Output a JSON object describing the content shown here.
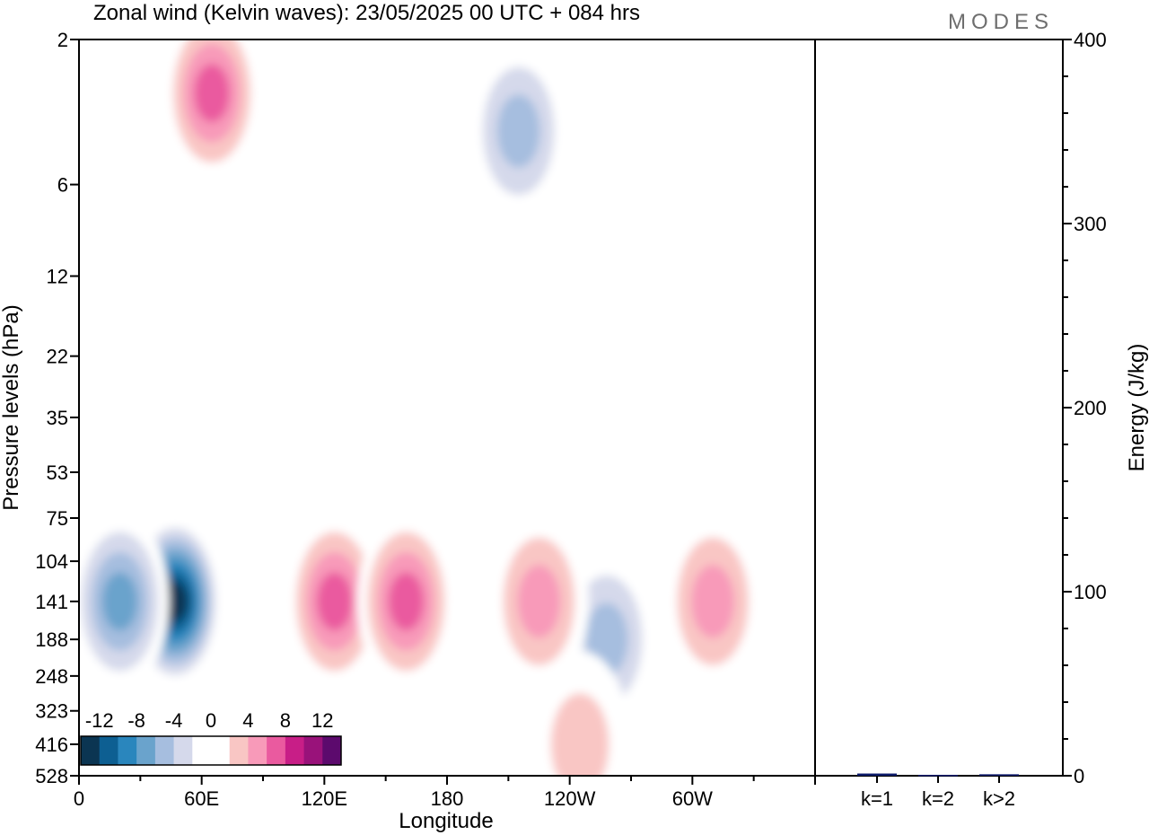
{
  "title": "Zonal wind (Kelvin waves):  23/05/2025  00 UTC  + 084 hrs",
  "logo": "MODES",
  "chart_data": [
    {
      "type": "heatmap",
      "xlabel": "Longitude",
      "ylabel": "Pressure levels (hPa)",
      "x_ticks": [
        "0",
        "60E",
        "120E",
        "180",
        "120W",
        "60W"
      ],
      "y_ticks": [
        "2",
        "6",
        "12",
        "22",
        "35",
        "53",
        "75",
        "104",
        "141",
        "188",
        "248",
        "323",
        "416",
        "528"
      ],
      "y_scale": "log",
      "colorbar": {
        "labels": [
          "-12",
          "-8",
          "-4",
          "0",
          "4",
          "8",
          "12"
        ],
        "colors": [
          "#0b3552",
          "#0d5f92",
          "#2a86bd",
          "#6aa3cc",
          "#a6bedf",
          "#d5d9eb",
          "#ffffff",
          "#ffffff",
          "#f9c6c4",
          "#f89ab9",
          "#ea5a9f",
          "#c81e87",
          "#99127a",
          "#5c0a6d"
        ]
      },
      "features": [
        {
          "sign": "negative",
          "peak": -14,
          "lon": 47,
          "pressure": 141
        },
        {
          "sign": "negative",
          "peak": -8,
          "lon": 20,
          "pressure": 141
        },
        {
          "sign": "negative",
          "peak": -6,
          "lon": 258,
          "pressure": 188
        },
        {
          "sign": "negative",
          "peak": -6,
          "lon": 215,
          "pressure": 4
        },
        {
          "sign": "positive",
          "peak": 8,
          "lon": 125,
          "pressure": 141
        },
        {
          "sign": "positive",
          "peak": 8,
          "lon": 160,
          "pressure": 141
        },
        {
          "sign": "positive",
          "peak": 6,
          "lon": 225,
          "pressure": 141
        },
        {
          "sign": "positive",
          "peak": 6,
          "lon": 310,
          "pressure": 141
        },
        {
          "sign": "positive",
          "peak": 4,
          "lon": 245,
          "pressure": 416
        },
        {
          "sign": "positive",
          "peak": 8,
          "lon": 65,
          "pressure": 3
        }
      ]
    },
    {
      "type": "bar",
      "categories": [
        "k=1",
        "k=2",
        "k>2"
      ],
      "values": [
        1.2,
        0.5,
        0.8
      ],
      "ylabel": "Energy (J/kg)",
      "ylim": [
        0,
        400
      ],
      "y_ticks": [
        "0",
        "100",
        "200",
        "300",
        "400"
      ],
      "bar_color": "#0d1b6b"
    }
  ]
}
